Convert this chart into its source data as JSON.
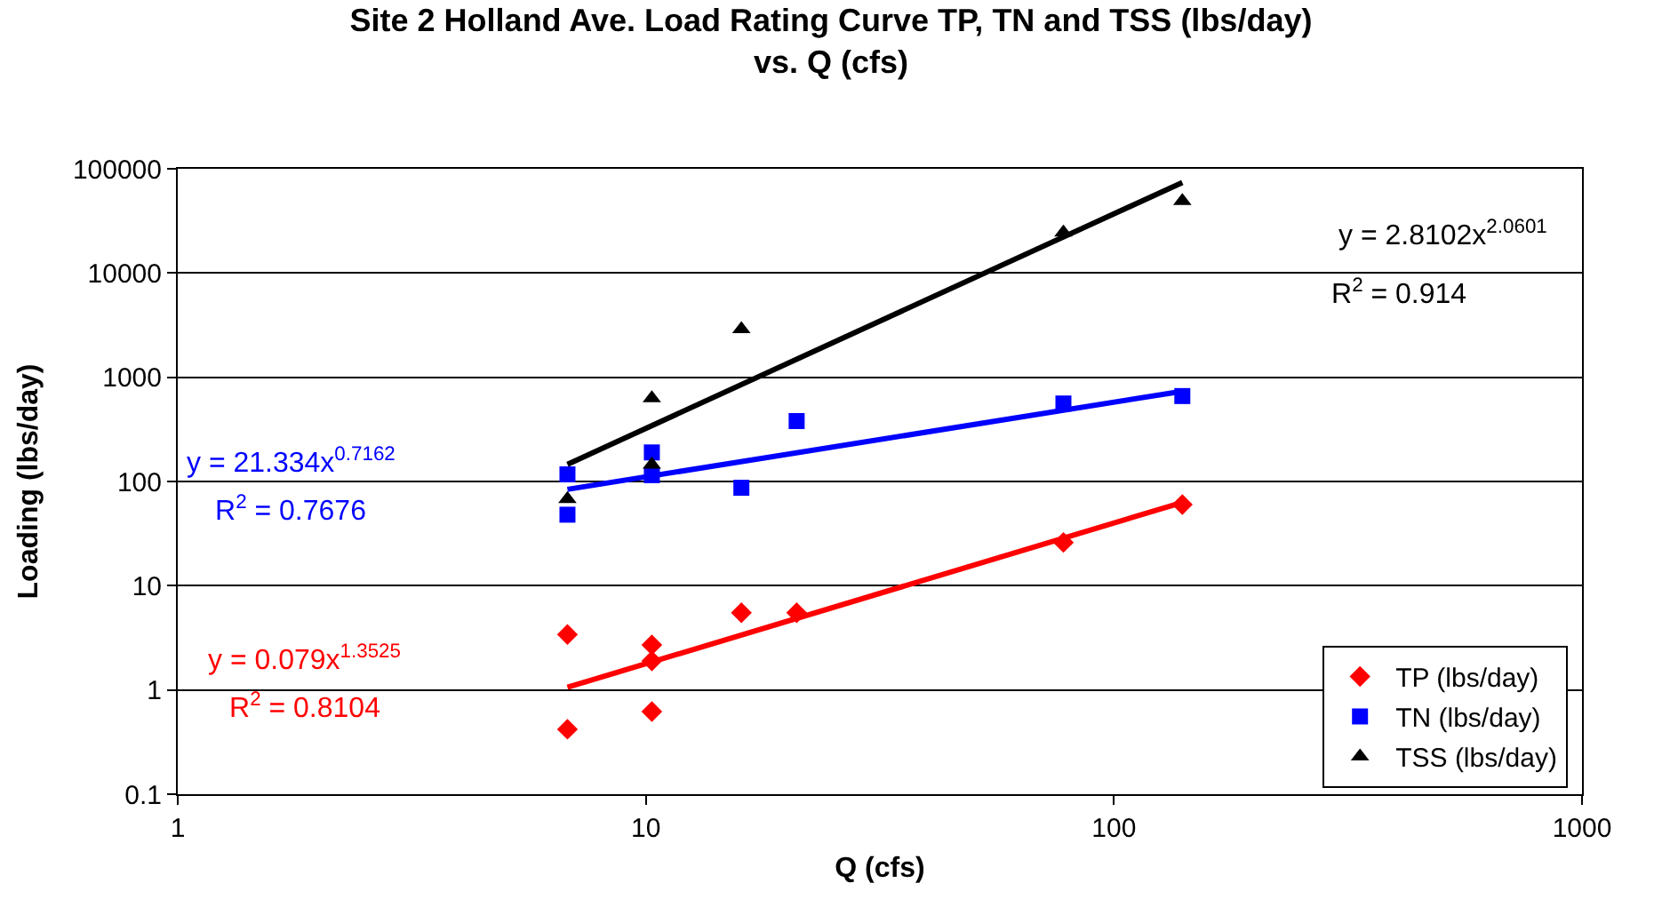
{
  "chart_data": {
    "type": "scatter",
    "title": "Site 2 Holland Ave. Load Rating Curve TP, TN and TSS (lbs/day)\nvs. Q (cfs)",
    "xlabel": "Q (cfs)",
    "ylabel": "Loading (lbs/day)",
    "log": "xy",
    "xlim": [
      1,
      1000
    ],
    "xticks": [
      1,
      10,
      100,
      1000
    ],
    "ylim": [
      0.1,
      100000
    ],
    "yticks": [
      0.1,
      1,
      10,
      100,
      1000,
      10000,
      100000
    ],
    "grid": "y",
    "legend": "bottom right",
    "series": [
      {
        "name": "TP (lbs/day)",
        "color": "#ff0000",
        "marker": "diamond",
        "x": [
          6.8,
          6.8,
          10.3,
          10.3,
          10.3,
          16,
          21,
          78,
          140
        ],
        "values": [
          3.4,
          0.42,
          2.7,
          1.9,
          0.62,
          5.5,
          5.5,
          26,
          60
        ]
      },
      {
        "name": "TN (lbs/day)",
        "color": "#0000ff",
        "marker": "square",
        "x": [
          6.8,
          6.8,
          10.3,
          10.3,
          16,
          21,
          78,
          140
        ],
        "values": [
          117,
          48,
          190,
          115,
          87,
          380,
          560,
          660
        ]
      },
      {
        "name": "TSS (lbs/day)",
        "color": "#000000",
        "marker": "triangle",
        "x": [
          6.8,
          10.3,
          10.3,
          16,
          78,
          140
        ],
        "values": [
          68,
          145,
          630,
          2900,
          24500,
          49000
        ]
      },
      {
        "type": "line",
        "color": "#ff0000",
        "x": [
          6.8,
          140
        ],
        "values": [
          1.06,
          63
        ]
      },
      {
        "type": "line",
        "color": "#0000ff",
        "x": [
          6.8,
          140
        ],
        "values": [
          84,
          734
        ]
      },
      {
        "type": "line",
        "color": "#000000",
        "x": [
          6.8,
          140
        ],
        "values": [
          146,
          73900
        ]
      }
    ],
    "annotations": [
      "y = 2.8102x$^{2.0601}$",
      "R$^{2}$ = 0.914",
      "y = 21.334x$^{0.7162}$",
      "R$^{2}$ = 0.7676",
      "y = 0.079x$^{1.3525}$",
      "R$^{2}$ = 0.8104"
    ]
  }
}
